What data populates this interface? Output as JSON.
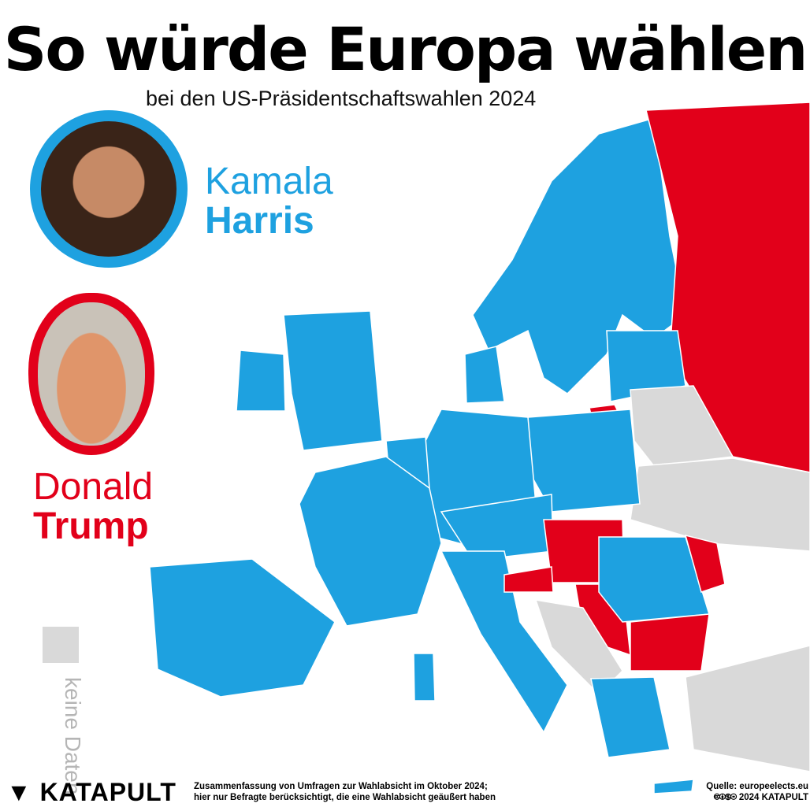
{
  "header": {
    "title": "So würde Europa wählen",
    "subtitle": "bei den US-Präsidentschaftswahlen 2024"
  },
  "legend": {
    "harris": {
      "first": "Kamala",
      "last": "Harris",
      "color": "#1ea1e0"
    },
    "trump": {
      "first": "Donald",
      "last": "Trump",
      "color": "#e2001a"
    },
    "no_data": {
      "label": "keine Daten",
      "color": "#d9d9d9"
    }
  },
  "footer": {
    "logo": "KATAPULT",
    "note_line1": "Zusammenfassung von Umfragen zur Wahlabsicht im Oktober 2024;",
    "note_line2": "hier nur Befragte berücksichtigt, die eine Wahlabsicht geäußert haben",
    "source": "Quelle: europeelects.eu",
    "copyright": "🅭🅯🄏⊜ 2024 KATAPULT"
  }
}
